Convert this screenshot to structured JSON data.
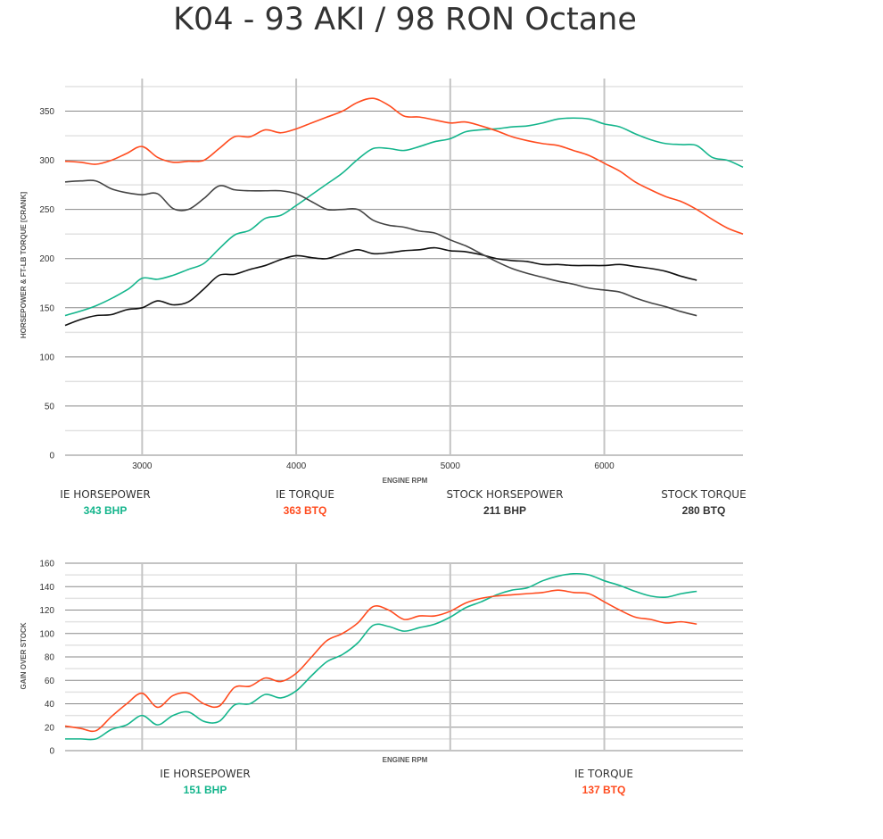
{
  "title": "K04 - 93 AKI / 98 RON Octane",
  "colors": {
    "ie_hp": "#14b58c",
    "ie_tq": "#ff4b1e",
    "stock_hp": "#111111",
    "stock_tq": "#444444"
  },
  "chart_data": [
    {
      "type": "line",
      "xlabel": "ENGINE RPM",
      "ylabel": "HORSEPOWER & FT-LB TORQUE [CRANK]",
      "xlim": [
        2500,
        6900
      ],
      "ylim": [
        0,
        375
      ],
      "xticks": [
        "3000",
        "4000",
        "5000",
        "6000"
      ],
      "yticks": [
        "0",
        "50",
        "100",
        "150",
        "200",
        "250",
        "300",
        "350"
      ],
      "grid": true,
      "series": [
        {
          "name": "IE HORSEPOWER",
          "color": "#14b58c",
          "x": [
            2500,
            2700,
            2900,
            3000,
            3100,
            3200,
            3300,
            3400,
            3500,
            3600,
            3700,
            3800,
            3900,
            4000,
            4100,
            4200,
            4300,
            4400,
            4500,
            4600,
            4700,
            4800,
            4900,
            5000,
            5100,
            5200,
            5300,
            5400,
            5500,
            5600,
            5700,
            5800,
            5900,
            6000,
            6100,
            6200,
            6300,
            6400,
            6500,
            6600,
            6700,
            6800,
            6900
          ],
          "y": [
            142,
            152,
            168,
            180,
            179,
            183,
            189,
            195,
            210,
            224,
            229,
            241,
            244,
            254,
            265,
            276,
            287,
            301,
            312,
            312,
            310,
            314,
            319,
            322,
            329,
            331,
            332,
            334,
            335,
            338,
            342,
            343,
            342,
            337,
            334,
            327,
            321,
            317,
            316,
            315,
            303,
            300,
            293
          ]
        },
        {
          "name": "IE TORQUE",
          "color": "#ff4b1e",
          "x": [
            2500,
            2600,
            2700,
            2800,
            2900,
            3000,
            3100,
            3200,
            3300,
            3400,
            3500,
            3600,
            3700,
            3800,
            3900,
            4000,
            4100,
            4200,
            4300,
            4400,
            4500,
            4600,
            4700,
            4800,
            4900,
            5000,
            5100,
            5200,
            5300,
            5400,
            5500,
            5600,
            5700,
            5800,
            5900,
            6000,
            6100,
            6200,
            6300,
            6400,
            6500,
            6600,
            6700,
            6800,
            6900
          ],
          "y": [
            299,
            298,
            296,
            300,
            307,
            314,
            303,
            298,
            299,
            300,
            312,
            324,
            324,
            331,
            328,
            332,
            338,
            344,
            350,
            359,
            363,
            356,
            345,
            344,
            341,
            338,
            339,
            335,
            330,
            324,
            320,
            317,
            315,
            310,
            305,
            297,
            289,
            278,
            270,
            263,
            258,
            250,
            240,
            231,
            225
          ]
        },
        {
          "name": "STOCK HORSEPOWER",
          "color": "#111111",
          "x": [
            2500,
            2600,
            2700,
            2800,
            2900,
            3000,
            3100,
            3200,
            3300,
            3400,
            3500,
            3600,
            3700,
            3800,
            3900,
            4000,
            4100,
            4200,
            4300,
            4400,
            4500,
            4600,
            4700,
            4800,
            4900,
            5000,
            5100,
            5200,
            5300,
            5400,
            5500,
            5600,
            5700,
            5800,
            5900,
            6000,
            6100,
            6200,
            6300,
            6400,
            6500,
            6600
          ],
          "y": [
            132,
            138,
            142,
            143,
            148,
            150,
            157,
            153,
            156,
            169,
            183,
            184,
            189,
            193,
            199,
            203,
            201,
            200,
            205,
            209,
            205,
            206,
            208,
            209,
            211,
            208,
            207,
            204,
            200,
            198,
            197,
            194,
            194,
            193,
            193,
            193,
            194,
            192,
            190,
            187,
            182,
            178
          ]
        },
        {
          "name": "STOCK TORQUE",
          "color": "#444444",
          "x": [
            2500,
            2600,
            2700,
            2800,
            2900,
            3000,
            3100,
            3200,
            3300,
            3400,
            3500,
            3600,
            3700,
            3800,
            3900,
            4000,
            4100,
            4200,
            4300,
            4400,
            4500,
            4600,
            4700,
            4800,
            4900,
            5000,
            5100,
            5200,
            5300,
            5400,
            5500,
            5600,
            5700,
            5800,
            5900,
            6000,
            6100,
            6200,
            6300,
            6400,
            6500,
            6600
          ],
          "y": [
            278,
            279,
            279,
            271,
            267,
            265,
            266,
            251,
            250,
            261,
            274,
            270,
            269,
            269,
            269,
            266,
            258,
            250,
            250,
            250,
            239,
            234,
            232,
            228,
            226,
            219,
            213,
            205,
            197,
            190,
            185,
            181,
            177,
            174,
            170,
            168,
            166,
            160,
            155,
            151,
            146,
            142
          ]
        }
      ],
      "legend": [
        {
          "label": "IE HORSEPOWER",
          "value": "343 BHP",
          "color": "#14b58c"
        },
        {
          "label": "IE TORQUE",
          "value": "363 BTQ",
          "color": "#ff4b1e"
        },
        {
          "label": "STOCK HORSEPOWER",
          "value": "211 BHP",
          "color": "#333333"
        },
        {
          "label": "STOCK TORQUE",
          "value": "280 BTQ",
          "color": "#333333"
        }
      ]
    },
    {
      "type": "line",
      "xlabel": "ENGINE RPM",
      "ylabel": "GAIN OVER STOCK",
      "xlim": [
        2500,
        6900
      ],
      "ylim": [
        0,
        160
      ],
      "yticks": [
        "0",
        "20",
        "40",
        "60",
        "80",
        "100",
        "120",
        "140",
        "160"
      ],
      "grid": true,
      "series": [
        {
          "name": "IE HORSEPOWER",
          "color": "#14b58c",
          "x": [
            2500,
            2600,
            2700,
            2800,
            2900,
            3000,
            3100,
            3200,
            3300,
            3400,
            3500,
            3600,
            3700,
            3800,
            3900,
            4000,
            4100,
            4200,
            4300,
            4400,
            4500,
            4600,
            4700,
            4800,
            4900,
            5000,
            5100,
            5200,
            5300,
            5400,
            5500,
            5600,
            5700,
            5800,
            5900,
            6000,
            6100,
            6200,
            6300,
            6400,
            6500,
            6600
          ],
          "y": [
            10,
            10,
            10,
            18,
            22,
            30,
            22,
            30,
            33,
            25,
            25,
            39,
            40,
            48,
            45,
            51,
            64,
            76,
            82,
            92,
            107,
            106,
            102,
            105,
            108,
            114,
            122,
            127,
            133,
            137,
            139,
            145,
            149,
            151,
            150,
            145,
            141,
            136,
            132,
            131,
            134,
            136
          ]
        },
        {
          "name": "IE TORQUE",
          "color": "#ff4b1e",
          "x": [
            2500,
            2600,
            2700,
            2800,
            2900,
            3000,
            3100,
            3200,
            3300,
            3400,
            3500,
            3600,
            3700,
            3800,
            3900,
            4000,
            4100,
            4200,
            4300,
            4400,
            4500,
            4600,
            4700,
            4800,
            4900,
            5000,
            5100,
            5200,
            5300,
            5400,
            5500,
            5600,
            5700,
            5800,
            5900,
            6000,
            6100,
            6200,
            6300,
            6400,
            6500,
            6600
          ],
          "y": [
            21,
            19,
            17,
            29,
            40,
            49,
            37,
            47,
            49,
            40,
            38,
            54,
            55,
            62,
            59,
            66,
            80,
            94,
            100,
            109,
            123,
            120,
            112,
            115,
            115,
            119,
            126,
            130,
            132,
            133,
            134,
            135,
            137,
            135,
            134,
            127,
            120,
            114,
            112,
            109,
            110,
            108
          ]
        }
      ],
      "legend": [
        {
          "label": "IE HORSEPOWER",
          "value": "151 BHP",
          "color": "#14b58c"
        },
        {
          "label": "IE TORQUE",
          "value": "137 BTQ",
          "color": "#ff4b1e"
        }
      ]
    }
  ]
}
